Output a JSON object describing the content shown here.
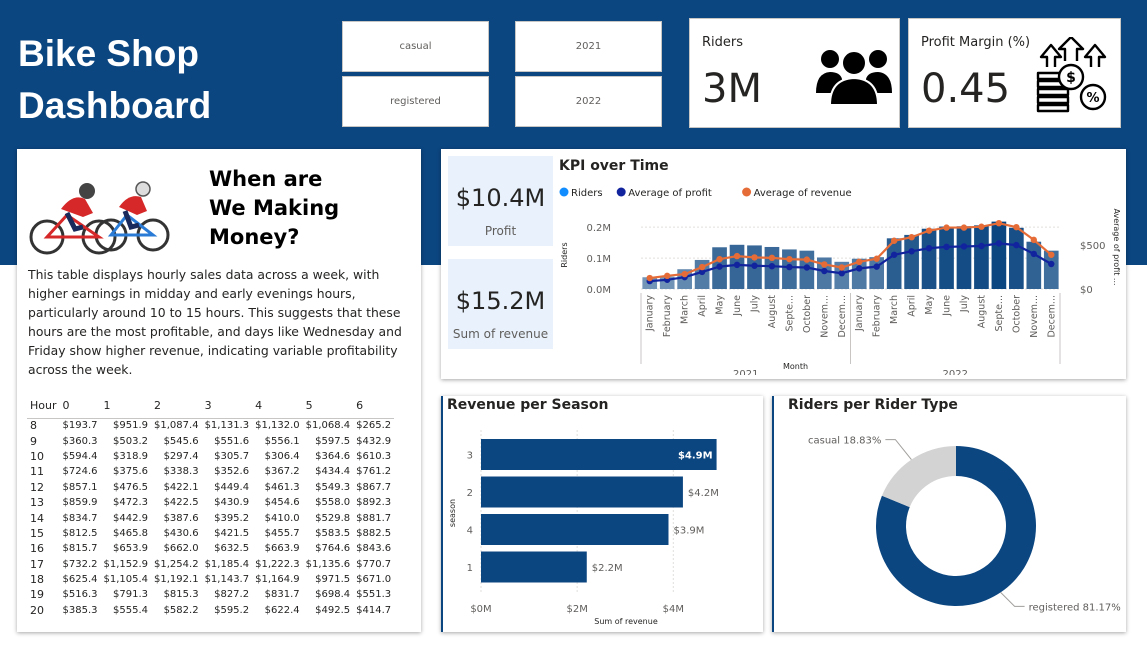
{
  "header": {
    "title_line1": "Bike Shop",
    "title_line2": "Dashboard",
    "bg_color": "#0c4680"
  },
  "slicers": {
    "rider_type": [
      "casual",
      "registered"
    ],
    "year": [
      "2021",
      "2022"
    ]
  },
  "cards": {
    "riders": {
      "label": "Riders",
      "value": "3M",
      "icon": "people-group-icon"
    },
    "profit_margin": {
      "label": "Profit Margin (%)",
      "value": "0.45",
      "icon": "money-growth-icon"
    }
  },
  "money_panel": {
    "heading_line1": "When are",
    "heading_line2": "We Making",
    "heading_line3": "Money?",
    "description": "This table displays hourly sales data across a week, with higher earnings in midday and early evenings hours, particularly around 10 to 15 hours. This suggests that these hours are the most profitable, and days like Wednesday and Friday show higher revenue, indicating variable profitability across the week.",
    "table": {
      "columns": [
        "Hour",
        "0",
        "1",
        "2",
        "3",
        "4",
        "5",
        "6"
      ],
      "rows": [
        [
          "8",
          "$193.7",
          "$951.9",
          "$1,087.4",
          "$1,131.3",
          "$1,132.0",
          "$1,068.4",
          "$265.2"
        ],
        [
          "9",
          "$360.3",
          "$503.2",
          "$545.6",
          "$551.6",
          "$556.1",
          "$597.5",
          "$432.9"
        ],
        [
          "10",
          "$594.4",
          "$318.9",
          "$297.4",
          "$305.7",
          "$306.4",
          "$364.6",
          "$610.3"
        ],
        [
          "11",
          "$724.6",
          "$375.6",
          "$338.3",
          "$352.6",
          "$367.2",
          "$434.4",
          "$761.2"
        ],
        [
          "12",
          "$857.1",
          "$476.5",
          "$422.1",
          "$449.4",
          "$461.3",
          "$549.3",
          "$867.7"
        ],
        [
          "13",
          "$859.9",
          "$472.3",
          "$422.5",
          "$430.9",
          "$454.6",
          "$558.0",
          "$892.3"
        ],
        [
          "14",
          "$834.7",
          "$442.9",
          "$387.6",
          "$395.2",
          "$410.0",
          "$529.8",
          "$881.7"
        ],
        [
          "15",
          "$812.5",
          "$465.8",
          "$430.6",
          "$421.5",
          "$455.7",
          "$583.5",
          "$882.5"
        ],
        [
          "16",
          "$815.7",
          "$653.9",
          "$662.0",
          "$632.5",
          "$663.9",
          "$764.6",
          "$843.6"
        ],
        [
          "17",
          "$732.2",
          "$1,152.9",
          "$1,254.2",
          "$1,185.4",
          "$1,222.3",
          "$1,135.6",
          "$770.7"
        ],
        [
          "18",
          "$625.4",
          "$1,105.4",
          "$1,192.1",
          "$1,143.7",
          "$1,164.9",
          "$971.5",
          "$671.0"
        ],
        [
          "19",
          "$516.3",
          "$791.3",
          "$815.3",
          "$827.2",
          "$831.7",
          "$698.4",
          "$551.3"
        ],
        [
          "20",
          "$385.3",
          "$555.4",
          "$582.2",
          "$595.2",
          "$622.4",
          "$492.5",
          "$414.7"
        ]
      ]
    }
  },
  "kpi_tiles": {
    "profit": {
      "value": "$10.4M",
      "label": "Profit"
    },
    "revenue": {
      "value": "$15.2M",
      "label": "Sum of revenue"
    }
  },
  "chart_data": [
    {
      "type": "bar+line",
      "title": "KPI over Time",
      "xlabel": "Month",
      "ylabel": "Riders",
      "y2label": "Average of profit ...",
      "legend": [
        "Riders",
        "Average of profit",
        "Average of revenue"
      ],
      "legend_colors": [
        "#118dff",
        "#12239e",
        "#e66c37"
      ],
      "legend_placement": "top-left",
      "year_groups": [
        "2021",
        "2022"
      ],
      "categories": [
        "January",
        "February",
        "March",
        "April",
        "May",
        "June",
        "July",
        "August",
        "Septe...",
        "October",
        "Novem...",
        "Decem...",
        "January",
        "February",
        "March",
        "April",
        "May",
        "June",
        "July",
        "August",
        "Septe...",
        "October",
        "Novem...",
        "Decem..."
      ],
      "yticks": [
        "0.0M",
        "0.1M",
        "0.2M"
      ],
      "ylim": [
        0,
        0.22
      ],
      "y2ticks": [
        "$0",
        "$500"
      ],
      "y2lim": [
        0,
        775
      ],
      "series": [
        {
          "name": "Riders",
          "values": [
            0.038,
            0.04,
            0.064,
            0.094,
            0.135,
            0.143,
            0.141,
            0.136,
            0.128,
            0.124,
            0.102,
            0.088,
            0.098,
            0.103,
            0.164,
            0.175,
            0.195,
            0.202,
            0.203,
            0.206,
            0.218,
            0.198,
            0.153,
            0.124
          ]
        },
        {
          "name": "Average of profit",
          "values": [
            90,
            105,
            135,
            195,
            255,
            275,
            265,
            260,
            250,
            245,
            205,
            180,
            235,
            255,
            390,
            430,
            465,
            480,
            485,
            490,
            520,
            500,
            400,
            285
          ]
        },
        {
          "name": "Average of revenue",
          "values": [
            125,
            150,
            170,
            250,
            340,
            375,
            360,
            355,
            340,
            335,
            280,
            245,
            310,
            345,
            550,
            590,
            665,
            700,
            700,
            710,
            750,
            705,
            560,
            390
          ]
        }
      ]
    },
    {
      "type": "bar",
      "orientation": "horizontal",
      "title": "Revenue per Season",
      "xlabel": "Sum of revenue",
      "ylabel": "season",
      "categories": [
        "3",
        "2",
        "4",
        "1"
      ],
      "values": [
        4.9,
        4.2,
        3.9,
        2.2
      ],
      "data_labels": [
        "$4.9M",
        "$4.2M",
        "$3.9M",
        "$2.2M"
      ],
      "xticks": [
        "$0M",
        "$2M",
        "$4M"
      ],
      "xlim": [
        0,
        5.2
      ],
      "color": "#0c4680"
    },
    {
      "type": "pie",
      "subtype": "donut",
      "title": "Riders per Rider Type",
      "categories": [
        "registered",
        "casual"
      ],
      "values": [
        81.17,
        18.83
      ],
      "data_labels": [
        "registered 81.17%",
        "casual 18.83%"
      ],
      "colors": [
        "#0c4680",
        "#d3d3d3"
      ]
    }
  ]
}
